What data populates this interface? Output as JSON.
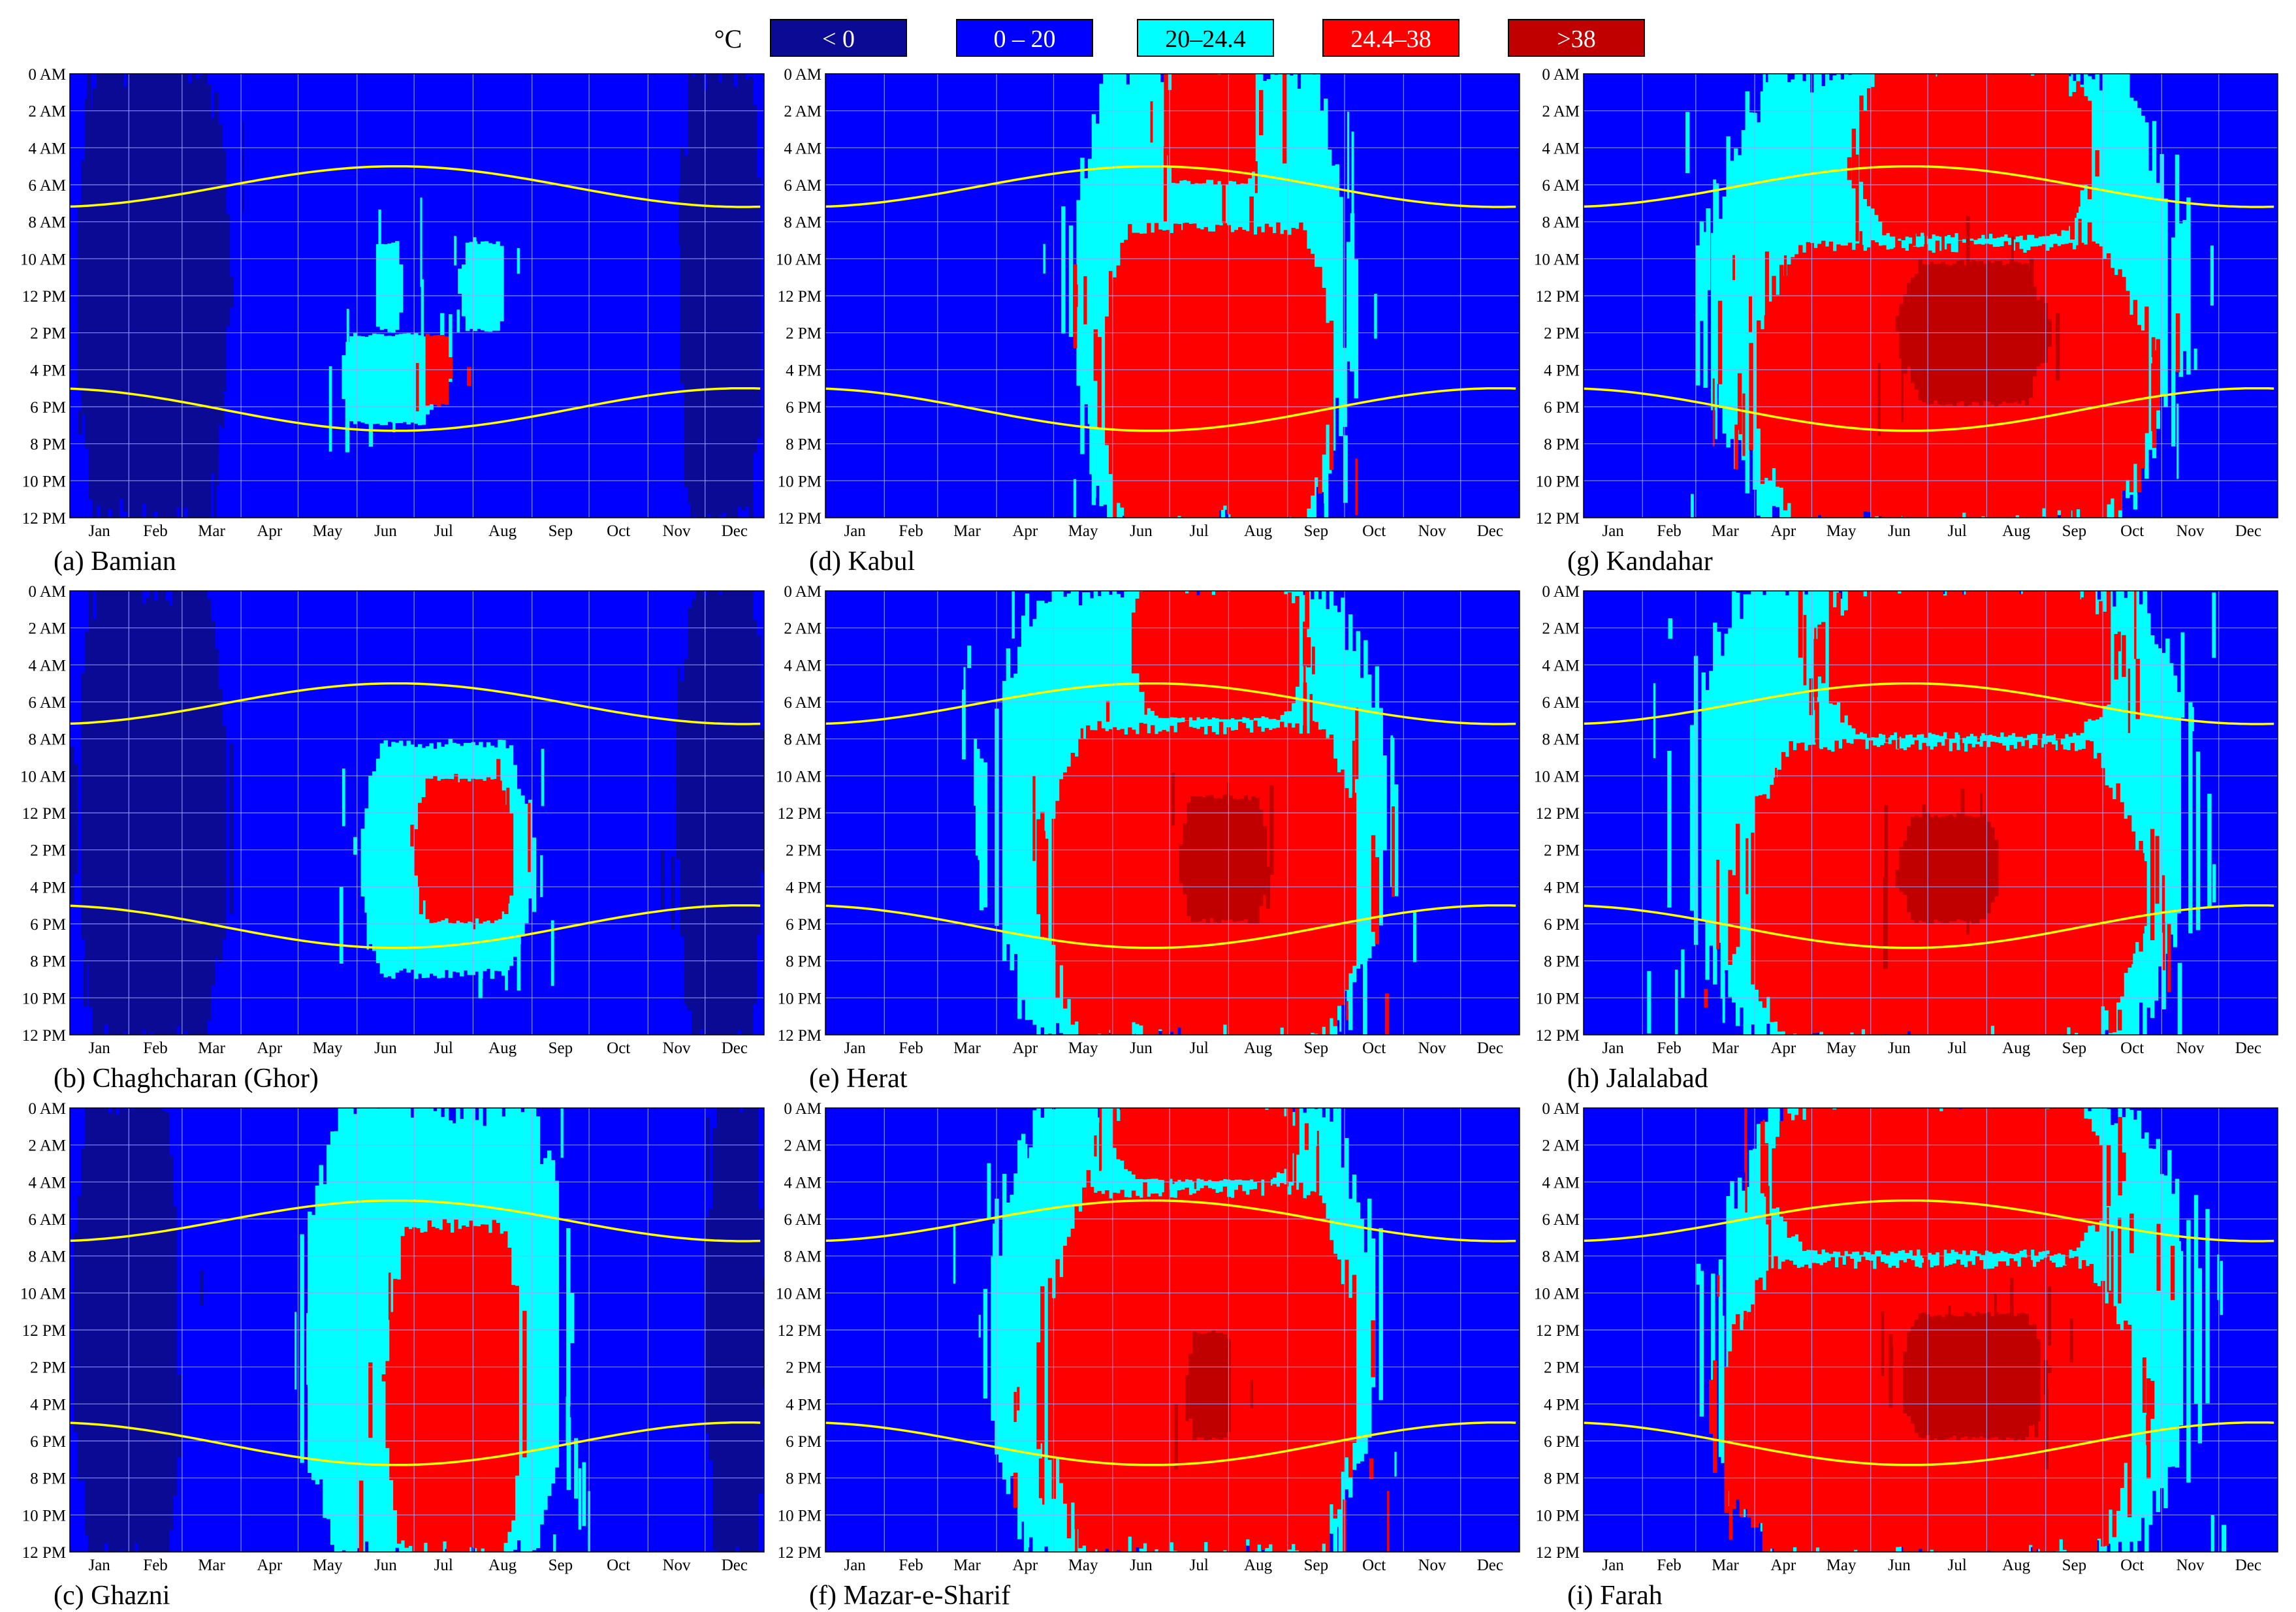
{
  "legend": {
    "unit_label": "°C",
    "items": [
      {
        "label": "< 0",
        "color": "#0a0a94",
        "text_color": "#ffffff"
      },
      {
        "label": "0 – 20",
        "color": "#0000ff",
        "text_color": "#ffffff"
      },
      {
        "label": "20–24.4",
        "color": "#00ffff",
        "text_color": "#000000"
      },
      {
        "label": "24.4–38",
        "color": "#ff0000",
        "text_color": "#ffffff"
      },
      {
        "label": ">38",
        "color": "#c00000",
        "text_color": "#ffffff"
      }
    ]
  },
  "chart_data": [
    {
      "type": "heatmap",
      "panel": "a",
      "caption": "(a) Bamian",
      "x_tick_labels": [
        "Jan",
        "Feb",
        "Mar",
        "Apr",
        "May",
        "Jun",
        "Jul",
        "Aug",
        "Sep",
        "Oct",
        "Nov",
        "Dec"
      ],
      "y_tick_labels": [
        "0 AM",
        "2 AM",
        "4 AM",
        "6 AM",
        "8 AM",
        "10 AM",
        "12 PM",
        "2 PM",
        "4 PM",
        "6 PM",
        "8 PM",
        "10 PM",
        "12 PM"
      ],
      "sunrise_hour": {
        "winter": 7.2,
        "summer": 5.0
      },
      "sunset_hour": {
        "winter": 17.0,
        "summer": 19.3
      },
      "regions": [
        {
          "category": "< 0",
          "doy": [
            1,
            85
          ],
          "hours": [
            0,
            24
          ]
        },
        {
          "category": "< 0",
          "doy": [
            320,
            365
          ],
          "hours": [
            0,
            24
          ]
        },
        {
          "category": "20–24.4",
          "doy": [
            160,
            175
          ],
          "hours": [
            9,
            14
          ]
        },
        {
          "category": "20–24.4",
          "doy": [
            205,
            230
          ],
          "hours": [
            9,
            14
          ]
        },
        {
          "category": "20–24.4",
          "doy": [
            140,
            195
          ],
          "hours": [
            14,
            19
          ]
        },
        {
          "category": "24.4–38",
          "doy": [
            186,
            200
          ],
          "hours": [
            14,
            18
          ]
        }
      ]
    },
    {
      "type": "heatmap",
      "panel": "b",
      "caption": "(b) Chaghcharan (Ghor)",
      "x_tick_labels": [
        "Jan",
        "Feb",
        "Mar",
        "Apr",
        "May",
        "Jun",
        "Jul",
        "Aug",
        "Sep",
        "Oct",
        "Nov",
        "Dec"
      ],
      "y_tick_labels": [
        "0 AM",
        "2 AM",
        "4 AM",
        "6 AM",
        "8 AM",
        "10 AM",
        "12 PM",
        "2 PM",
        "4 PM",
        "6 PM",
        "8 PM",
        "10 PM",
        "12 PM"
      ],
      "sunrise_hour": {
        "winter": 7.2,
        "summer": 5.0
      },
      "sunset_hour": {
        "winter": 17.0,
        "summer": 19.3
      },
      "regions": [
        {
          "category": "< 0",
          "doy": [
            1,
            85
          ],
          "hours": [
            0,
            24
          ]
        },
        {
          "category": "< 0",
          "doy": [
            320,
            365
          ],
          "hours": [
            0,
            24
          ]
        },
        {
          "category": "20–24.4",
          "doy": [
            150,
            245
          ],
          "hours": [
            8,
            21
          ]
        },
        {
          "category": "24.4–38",
          "doy": [
            180,
            235
          ],
          "hours": [
            10,
            18
          ]
        }
      ]
    },
    {
      "type": "heatmap",
      "panel": "c",
      "caption": "(c) Ghazni",
      "x_tick_labels": [
        "Jan",
        "Feb",
        "Mar",
        "Apr",
        "May",
        "Jun",
        "Jul",
        "Aug",
        "Sep",
        "Oct",
        "Nov",
        "Dec"
      ],
      "y_tick_labels": [
        "0 AM",
        "2 AM",
        "4 AM",
        "6 AM",
        "8 AM",
        "10 AM",
        "12 PM",
        "2 PM",
        "4 PM",
        "6 PM",
        "8 PM",
        "10 PM",
        "12 PM"
      ],
      "sunrise_hour": {
        "winter": 7.2,
        "summer": 5.0
      },
      "sunset_hour": {
        "winter": 17.0,
        "summer": 19.3
      },
      "regions": [
        {
          "category": "< 0",
          "doy": [
            1,
            60
          ],
          "hours": [
            0,
            24
          ]
        },
        {
          "category": "< 0",
          "doy": [
            335,
            365
          ],
          "hours": [
            0,
            24
          ]
        },
        {
          "category": "20–24.4",
          "doy": [
            120,
            265
          ],
          "hours": [
            0,
            24
          ]
        },
        {
          "category": "24.4–38",
          "doy": [
            165,
            240
          ],
          "hours": [
            6,
            24
          ]
        }
      ]
    },
    {
      "type": "heatmap",
      "panel": "d",
      "caption": "(d) Kabul",
      "x_tick_labels": [
        "Jan",
        "Feb",
        "Mar",
        "Apr",
        "May",
        "Jun",
        "Jul",
        "Aug",
        "Sep",
        "Oct",
        "Nov",
        "Dec"
      ],
      "y_tick_labels": [
        "0 AM",
        "2 AM",
        "4 AM",
        "6 AM",
        "8 AM",
        "10 AM",
        "12 PM",
        "2 PM",
        "4 PM",
        "6 PM",
        "8 PM",
        "10 PM",
        "12 PM"
      ],
      "sunrise_hour": {
        "winter": 7.2,
        "summer": 5.0
      },
      "sunset_hour": {
        "winter": 17.0,
        "summer": 19.3
      },
      "regions": [
        {
          "category": "20–24.4",
          "doy": [
            125,
            280
          ],
          "hours": [
            0,
            24
          ]
        },
        {
          "category": "24.4–38",
          "doy": [
            140,
            270
          ],
          "hours": [
            8,
            24
          ]
        },
        {
          "category": "24.4–38",
          "doy": [
            175,
            230
          ],
          "hours": [
            0,
            6
          ]
        }
      ]
    },
    {
      "type": "heatmap",
      "panel": "e",
      "caption": "(e) Herat",
      "x_tick_labels": [
        "Jan",
        "Feb",
        "Mar",
        "Apr",
        "May",
        "Jun",
        "Jul",
        "Aug",
        "Sep",
        "Oct",
        "Nov",
        "Dec"
      ],
      "y_tick_labels": [
        "0 AM",
        "2 AM",
        "4 AM",
        "6 AM",
        "8 AM",
        "10 AM",
        "12 PM",
        "2 PM",
        "4 PM",
        "6 PM",
        "8 PM",
        "10 PM",
        "12 PM"
      ],
      "sunrise_hour": {
        "winter": 7.2,
        "summer": 5.0
      },
      "sunset_hour": {
        "winter": 17.0,
        "summer": 19.3
      },
      "regions": [
        {
          "category": "20–24.4",
          "doy": [
            80,
            300
          ],
          "hours": [
            0,
            24
          ]
        },
        {
          "category": "24.4–38",
          "doy": [
            110,
            290
          ],
          "hours": [
            7,
            24
          ]
        },
        {
          "category": "24.4–38",
          "doy": [
            160,
            255
          ],
          "hours": [
            0,
            7
          ]
        },
        {
          "category": ">38",
          "doy": [
            185,
            235
          ],
          "hours": [
            11,
            18
          ]
        }
      ]
    },
    {
      "type": "heatmap",
      "panel": "f",
      "caption": "(f) Mazar-e-Sharif",
      "x_tick_labels": [
        "Jan",
        "Feb",
        "Mar",
        "Apr",
        "May",
        "Jun",
        "Jul",
        "Aug",
        "Sep",
        "Oct",
        "Nov",
        "Dec"
      ],
      "y_tick_labels": [
        "0 AM",
        "2 AM",
        "4 AM",
        "6 AM",
        "8 AM",
        "10 AM",
        "12 PM",
        "2 PM",
        "4 PM",
        "6 PM",
        "8 PM",
        "10 PM",
        "12 PM"
      ],
      "sunrise_hour": {
        "winter": 7.2,
        "summer": 5.0
      },
      "sunset_hour": {
        "winter": 17.0,
        "summer": 19.3
      },
      "regions": [
        {
          "category": "20–24.4",
          "doy": [
            80,
            295
          ],
          "hours": [
            0,
            24
          ]
        },
        {
          "category": "24.4–38",
          "doy": [
            110,
            285
          ],
          "hours": [
            4,
            24
          ]
        },
        {
          "category": "24.4–38",
          "doy": [
            150,
            250
          ],
          "hours": [
            0,
            4
          ]
        },
        {
          "category": ">38",
          "doy": [
            190,
            215
          ],
          "hours": [
            12,
            18
          ]
        }
      ]
    },
    {
      "type": "heatmap",
      "panel": "g",
      "caption": "(g) Kandahar",
      "x_tick_labels": [
        "Jan",
        "Feb",
        "Mar",
        "Apr",
        "May",
        "Jun",
        "Jul",
        "Aug",
        "Sep",
        "Oct",
        "Nov",
        "Dec"
      ],
      "y_tick_labels": [
        "0 AM",
        "2 AM",
        "4 AM",
        "6 AM",
        "8 AM",
        "10 AM",
        "12 PM",
        "2 PM",
        "4 PM",
        "6 PM",
        "8 PM",
        "10 PM",
        "12 PM"
      ],
      "sunrise_hour": {
        "winter": 7.2,
        "summer": 5.0
      },
      "sunset_hour": {
        "winter": 17.0,
        "summer": 19.3
      },
      "regions": [
        {
          "category": "20–24.4",
          "doy": [
            60,
            320
          ],
          "hours": [
            0,
            24
          ]
        },
        {
          "category": "24.4–38",
          "doy": [
            80,
            305
          ],
          "hours": [
            9,
            24
          ]
        },
        {
          "category": "24.4–38",
          "doy": [
            140,
            270
          ],
          "hours": [
            0,
            9
          ]
        },
        {
          "category": ">38",
          "doy": [
            165,
            245
          ],
          "hours": [
            10,
            18
          ]
        }
      ]
    },
    {
      "type": "heatmap",
      "panel": "h",
      "caption": "(h) Jalalabad",
      "x_tick_labels": [
        "Jan",
        "Feb",
        "Mar",
        "Apr",
        "May",
        "Jun",
        "Jul",
        "Aug",
        "Sep",
        "Oct",
        "Nov",
        "Dec"
      ],
      "y_tick_labels": [
        "0 AM",
        "2 AM",
        "4 AM",
        "6 AM",
        "8 AM",
        "10 AM",
        "12 PM",
        "2 PM",
        "4 PM",
        "6 PM",
        "8 PM",
        "10 PM",
        "12 PM"
      ],
      "sunrise_hour": {
        "winter": 7.2,
        "summer": 5.0
      },
      "sunset_hour": {
        "winter": 17.0,
        "summer": 19.3
      },
      "regions": [
        {
          "category": "20–24.4",
          "doy": [
            45,
            330
          ],
          "hours": [
            0,
            24
          ]
        },
        {
          "category": "24.4–38",
          "doy": [
            75,
            300
          ],
          "hours": [
            8,
            24
          ]
        },
        {
          "category": "24.4–38",
          "doy": [
            120,
            285
          ],
          "hours": [
            0,
            8
          ]
        },
        {
          "category": ">38",
          "doy": [
            165,
            220
          ],
          "hours": [
            12,
            18
          ]
        }
      ]
    },
    {
      "type": "heatmap",
      "panel": "i",
      "caption": "(i) Farah",
      "x_tick_labels": [
        "Jan",
        "Feb",
        "Mar",
        "Apr",
        "May",
        "Jun",
        "Jul",
        "Aug",
        "Sep",
        "Oct",
        "Nov",
        "Dec"
      ],
      "y_tick_labels": [
        "0 AM",
        "2 AM",
        "4 AM",
        "6 AM",
        "8 AM",
        "10 AM",
        "12 PM",
        "2 PM",
        "4 PM",
        "6 PM",
        "8 PM",
        "10 PM",
        "12 PM"
      ],
      "sunrise_hour": {
        "winter": 7.2,
        "summer": 5.0
      },
      "sunset_hour": {
        "winter": 17.0,
        "summer": 19.3
      },
      "regions": [
        {
          "category": "20–24.4",
          "doy": [
            60,
            330
          ],
          "hours": [
            0,
            24
          ]
        },
        {
          "category": "24.4–38",
          "doy": [
            65,
            300
          ],
          "hours": [
            8,
            24
          ]
        },
        {
          "category": "24.4–38",
          "doy": [
            90,
            285
          ],
          "hours": [
            0,
            8
          ]
        },
        {
          "category": ">38",
          "doy": [
            165,
            245
          ],
          "hours": [
            11,
            18
          ]
        }
      ]
    }
  ]
}
